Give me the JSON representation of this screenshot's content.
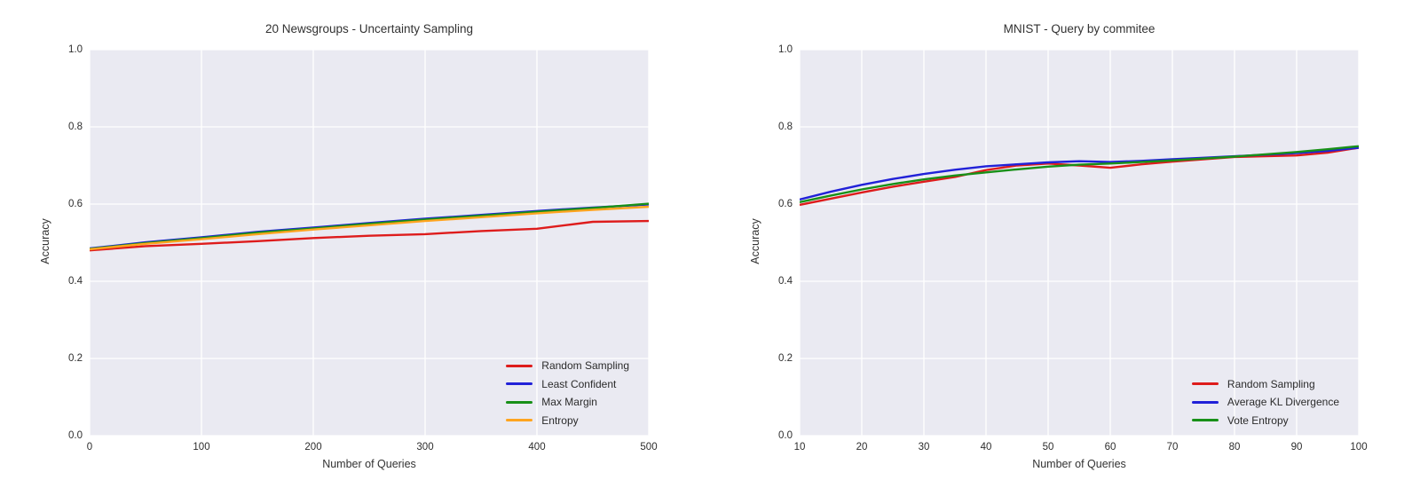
{
  "figure": {
    "background": "#ffffff",
    "plot_background": "#eaeaf2",
    "grid_color": "#ffffff",
    "text_color": "#2d2d2d"
  },
  "chart_data": [
    {
      "type": "line",
      "title": "20 Newsgroups - Uncertainty Sampling",
      "xlabel": "Number of Queries",
      "ylabel": "Accuracy",
      "xlim": [
        0,
        500
      ],
      "ylim": [
        0.0,
        1.0
      ],
      "x_ticks": [
        0,
        100,
        200,
        300,
        400,
        500
      ],
      "y_ticks": [
        0.0,
        0.2,
        0.4,
        0.6,
        0.8,
        1.0
      ],
      "grid": true,
      "legend_position": "lower right",
      "x": [
        0,
        50,
        100,
        150,
        200,
        250,
        300,
        350,
        400,
        450,
        500
      ],
      "series": [
        {
          "name": "Random Sampling",
          "color": "#de1c1c",
          "values": [
            0.48,
            0.491,
            0.497,
            0.504,
            0.512,
            0.518,
            0.522,
            0.53,
            0.536,
            0.554,
            0.556
          ]
        },
        {
          "name": "Least Confident",
          "color": "#2121d8",
          "values": [
            0.485,
            0.501,
            0.514,
            0.528,
            0.539,
            0.551,
            0.562,
            0.572,
            0.582,
            0.591,
            0.599
          ]
        },
        {
          "name": "Max Margin",
          "color": "#189018",
          "values": [
            0.484,
            0.499,
            0.512,
            0.526,
            0.537,
            0.549,
            0.56,
            0.57,
            0.58,
            0.59,
            0.601
          ]
        },
        {
          "name": "Entropy",
          "color": "#ffa41f",
          "values": [
            0.483,
            0.497,
            0.509,
            0.522,
            0.534,
            0.545,
            0.556,
            0.566,
            0.576,
            0.585,
            0.593
          ]
        }
      ]
    },
    {
      "type": "line",
      "title": "MNIST - Query by commitee",
      "xlabel": "Number of Queries",
      "ylabel": "Accuracy",
      "xlim": [
        10,
        100
      ],
      "ylim": [
        0.0,
        1.0
      ],
      "x_ticks": [
        10,
        20,
        30,
        40,
        50,
        60,
        70,
        80,
        90,
        100
      ],
      "y_ticks": [
        0.0,
        0.2,
        0.4,
        0.6,
        0.8,
        1.0
      ],
      "grid": true,
      "legend_position": "lower right",
      "x": [
        10,
        15,
        20,
        25,
        30,
        35,
        40,
        45,
        50,
        55,
        60,
        65,
        70,
        75,
        80,
        85,
        90,
        95,
        100
      ],
      "series": [
        {
          "name": "Random Sampling",
          "color": "#de1c1c",
          "values": [
            0.598,
            0.614,
            0.63,
            0.645,
            0.658,
            0.67,
            0.688,
            0.7,
            0.705,
            0.7,
            0.694,
            0.703,
            0.71,
            0.716,
            0.722,
            0.724,
            0.726,
            0.733,
            0.746
          ]
        },
        {
          "name": "Average KL Divergence",
          "color": "#2121d8",
          "values": [
            0.612,
            0.632,
            0.65,
            0.665,
            0.678,
            0.689,
            0.698,
            0.703,
            0.708,
            0.711,
            0.709,
            0.712,
            0.716,
            0.72,
            0.724,
            0.728,
            0.732,
            0.738,
            0.746
          ]
        },
        {
          "name": "Vote Entropy",
          "color": "#189018",
          "values": [
            0.605,
            0.622,
            0.638,
            0.652,
            0.664,
            0.674,
            0.682,
            0.69,
            0.697,
            0.702,
            0.705,
            0.709,
            0.713,
            0.718,
            0.723,
            0.729,
            0.735,
            0.742,
            0.75
          ]
        }
      ]
    }
  ]
}
